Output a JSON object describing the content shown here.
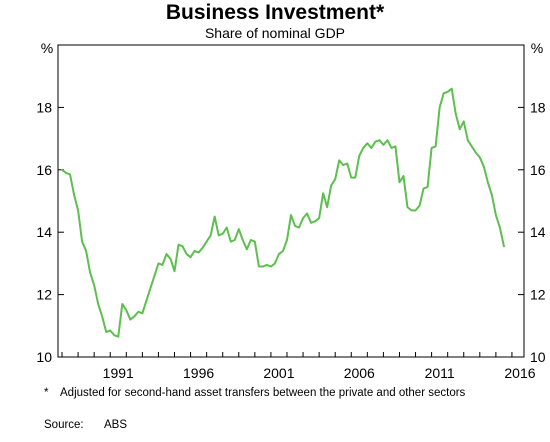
{
  "header": {
    "title": "Business Investment*",
    "subtitle": "Share of nominal GDP"
  },
  "footnote": {
    "marker": "*",
    "text": "Adjusted for second-hand asset transfers between the private and other sectors"
  },
  "source": {
    "label": "Source:",
    "value": "ABS"
  },
  "chart_data": {
    "type": "line",
    "title": "Business Investment*",
    "subtitle": "Share of nominal GDP",
    "ylabel_left": "%",
    "ylabel_right": "%",
    "ylim": [
      10,
      20
    ],
    "xlim": [
      1987.75,
      2016.75
    ],
    "yticks": [
      10,
      12,
      14,
      16,
      18
    ],
    "xticks": [
      1991,
      1996,
      2001,
      2006,
      2011,
      2016
    ],
    "grid": false,
    "line_color": "#5cbf4e",
    "series": [
      {
        "points": [
          [
            1988.0,
            16.0
          ],
          [
            1988.25,
            15.9
          ],
          [
            1988.5,
            15.85
          ],
          [
            1988.75,
            15.2
          ],
          [
            1989.0,
            14.7
          ],
          [
            1989.25,
            13.7
          ],
          [
            1989.5,
            13.4
          ],
          [
            1989.75,
            12.7
          ],
          [
            1990.0,
            12.3
          ],
          [
            1990.25,
            11.7
          ],
          [
            1990.5,
            11.3
          ],
          [
            1990.75,
            10.8
          ],
          [
            1991.0,
            10.85
          ],
          [
            1991.25,
            10.7
          ],
          [
            1991.5,
            10.65
          ],
          [
            1991.75,
            11.7
          ],
          [
            1992.0,
            11.5
          ],
          [
            1992.25,
            11.2
          ],
          [
            1992.5,
            11.3
          ],
          [
            1992.75,
            11.45
          ],
          [
            1993.0,
            11.4
          ],
          [
            1993.25,
            11.8
          ],
          [
            1993.5,
            12.2
          ],
          [
            1993.75,
            12.6
          ],
          [
            1994.0,
            13.0
          ],
          [
            1994.25,
            12.95
          ],
          [
            1994.5,
            13.3
          ],
          [
            1994.75,
            13.15
          ],
          [
            1995.0,
            12.75
          ],
          [
            1995.25,
            13.6
          ],
          [
            1995.5,
            13.55
          ],
          [
            1995.75,
            13.3
          ],
          [
            1996.0,
            13.2
          ],
          [
            1996.25,
            13.4
          ],
          [
            1996.5,
            13.35
          ],
          [
            1996.75,
            13.5
          ],
          [
            1997.0,
            13.7
          ],
          [
            1997.25,
            13.9
          ],
          [
            1997.5,
            14.5
          ],
          [
            1997.75,
            13.9
          ],
          [
            1998.0,
            13.95
          ],
          [
            1998.25,
            14.15
          ],
          [
            1998.5,
            13.7
          ],
          [
            1998.75,
            13.75
          ],
          [
            1999.0,
            14.1
          ],
          [
            1999.25,
            13.75
          ],
          [
            1999.5,
            13.45
          ],
          [
            1999.75,
            13.75
          ],
          [
            2000.0,
            13.7
          ],
          [
            2000.25,
            12.9
          ],
          [
            2000.5,
            12.9
          ],
          [
            2000.75,
            12.95
          ],
          [
            2001.0,
            12.9
          ],
          [
            2001.25,
            13.0
          ],
          [
            2001.5,
            13.3
          ],
          [
            2001.75,
            13.4
          ],
          [
            2002.0,
            13.75
          ],
          [
            2002.25,
            14.55
          ],
          [
            2002.5,
            14.2
          ],
          [
            2002.75,
            14.15
          ],
          [
            2003.0,
            14.45
          ],
          [
            2003.25,
            14.6
          ],
          [
            2003.5,
            14.3
          ],
          [
            2003.75,
            14.35
          ],
          [
            2004.0,
            14.45
          ],
          [
            2004.25,
            15.25
          ],
          [
            2004.5,
            14.8
          ],
          [
            2004.75,
            15.5
          ],
          [
            2005.0,
            15.7
          ],
          [
            2005.25,
            16.3
          ],
          [
            2005.5,
            16.15
          ],
          [
            2005.75,
            16.2
          ],
          [
            2006.0,
            15.75
          ],
          [
            2006.25,
            15.75
          ],
          [
            2006.5,
            16.45
          ],
          [
            2006.75,
            16.7
          ],
          [
            2007.0,
            16.85
          ],
          [
            2007.25,
            16.7
          ],
          [
            2007.5,
            16.9
          ],
          [
            2007.75,
            16.95
          ],
          [
            2008.0,
            16.8
          ],
          [
            2008.25,
            16.95
          ],
          [
            2008.5,
            16.7
          ],
          [
            2008.75,
            16.75
          ],
          [
            2009.0,
            15.6
          ],
          [
            2009.25,
            15.8
          ],
          [
            2009.5,
            14.8
          ],
          [
            2009.75,
            14.7
          ],
          [
            2010.0,
            14.7
          ],
          [
            2010.25,
            14.85
          ],
          [
            2010.5,
            15.4
          ],
          [
            2010.75,
            15.45
          ],
          [
            2011.0,
            16.7
          ],
          [
            2011.25,
            16.75
          ],
          [
            2011.5,
            18.0
          ],
          [
            2011.75,
            18.45
          ],
          [
            2012.0,
            18.5
          ],
          [
            2012.25,
            18.6
          ],
          [
            2012.5,
            17.8
          ],
          [
            2012.75,
            17.3
          ],
          [
            2013.0,
            17.55
          ],
          [
            2013.25,
            16.95
          ],
          [
            2013.5,
            16.75
          ],
          [
            2013.75,
            16.55
          ],
          [
            2014.0,
            16.4
          ],
          [
            2014.25,
            16.1
          ],
          [
            2014.5,
            15.6
          ],
          [
            2014.75,
            15.2
          ],
          [
            2015.0,
            14.55
          ],
          [
            2015.25,
            14.15
          ],
          [
            2015.5,
            13.55
          ]
        ]
      }
    ]
  }
}
